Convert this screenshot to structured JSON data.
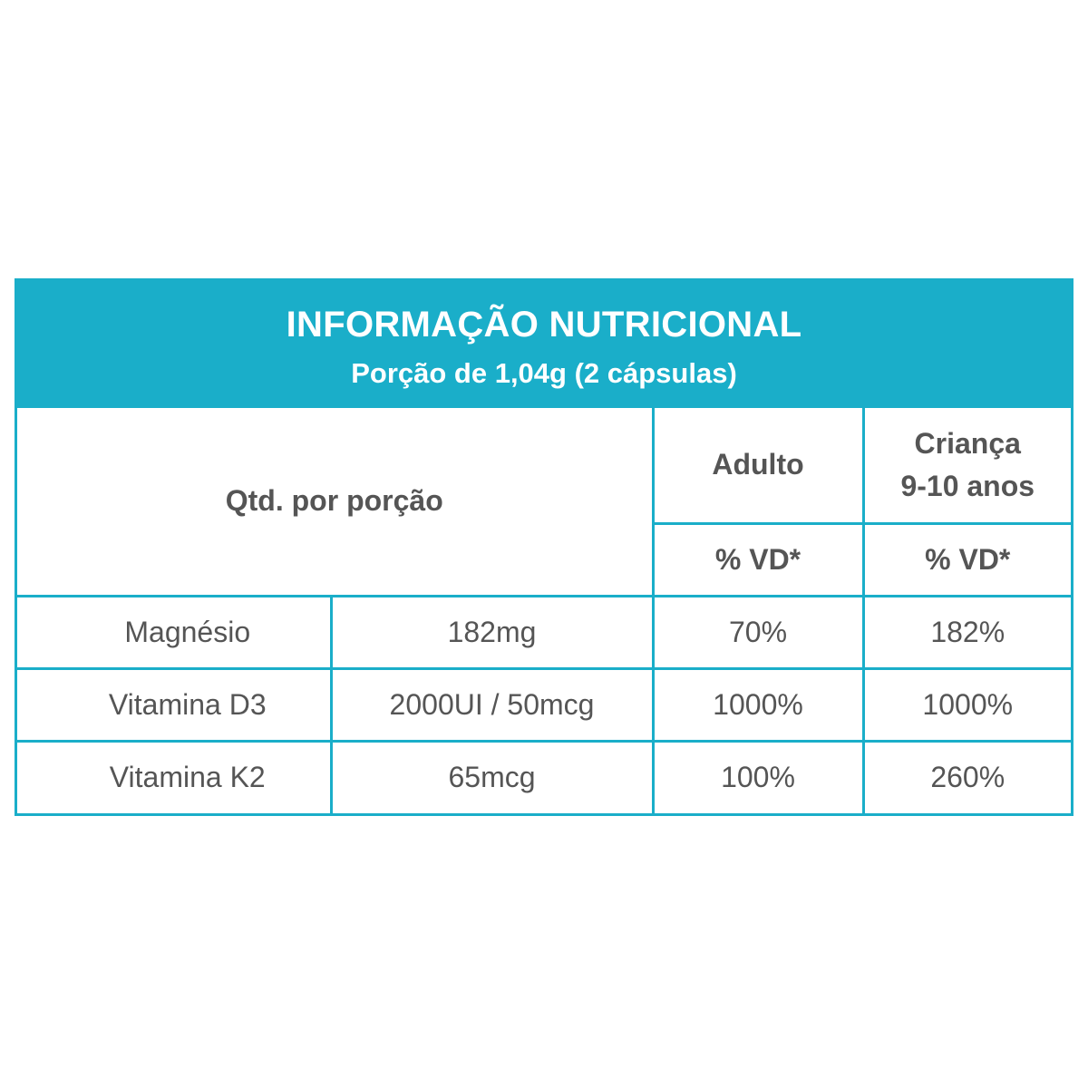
{
  "header": {
    "title": "INFORMAÇÃO NUTRICIONAL",
    "subtitle": "Porção de 1,04g (2 cápsulas)"
  },
  "columns": {
    "qty_label": "Qtd. por porção",
    "adult_label": "Adulto",
    "child_label_line1": "Criança",
    "child_label_line2": "9-10 anos",
    "adult_vd": "% VD*",
    "child_vd": "% VD*"
  },
  "rows": [
    {
      "name": "Magnésio",
      "amount": "182mg",
      "adult_vd": "70%",
      "child_vd": "182%"
    },
    {
      "name": "Vitamina D3",
      "amount": "2000UI / 50mcg",
      "adult_vd": "1000%",
      "child_vd": "1000%"
    },
    {
      "name": "Vitamina K2",
      "amount": "65mcg",
      "adult_vd": "100%",
      "child_vd": "260%"
    }
  ],
  "colors": {
    "accent": "#1aaec9",
    "text": "#555555",
    "header_text": "#ffffff"
  }
}
